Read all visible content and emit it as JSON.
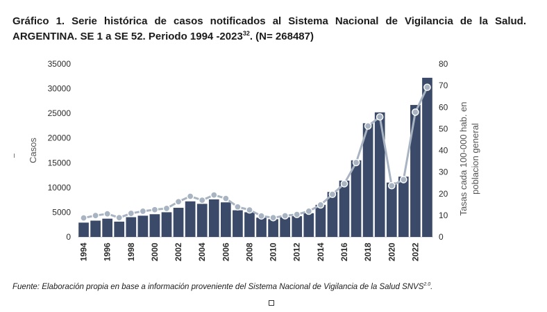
{
  "title": {
    "line": "Gráfico 1. Serie histórica de casos notificados al Sistema Nacional de Vigilancia de la Salud. ARGENTINA. SE 1 a SE 52. Periodo 1994 -2023",
    "superscript": "32",
    "suffix": ". (N= 268487)"
  },
  "source": {
    "text": "Fuente: Elaboración propia en base a información proveniente del Sistema Nacional de Vigilancia de la Salud SNVS",
    "superscript": "2.0",
    "suffix": "."
  },
  "colors": {
    "bars": "#3b4a68",
    "line": "#a9b4c2",
    "markers_fill": "#a9b4c2",
    "markers_stroke": "#ffffff"
  },
  "chart_data": {
    "type": "bar+line",
    "x": [
      1994,
      1995,
      1996,
      1997,
      1998,
      1999,
      2000,
      2001,
      2002,
      2003,
      2004,
      2005,
      2006,
      2007,
      2008,
      2009,
      2010,
      2011,
      2012,
      2013,
      2014,
      2015,
      2016,
      2017,
      2018,
      2019,
      2020,
      2021,
      2022,
      2023
    ],
    "series": [
      {
        "name": "Casos",
        "kind": "bar",
        "axis": "left",
        "values": [
          2900,
          3300,
          3700,
          3100,
          4000,
          4300,
          4600,
          5000,
          5900,
          7200,
          6700,
          7600,
          7000,
          5400,
          5000,
          3900,
          3600,
          4000,
          4200,
          4800,
          6500,
          9100,
          11400,
          15500,
          23000,
          25200,
          11000,
          12200,
          26700,
          32200
        ]
      },
      {
        "name": "Tasas cada 100-000 hab. en poblacion general",
        "kind": "line",
        "axis": "right",
        "values": [
          8.8,
          9.9,
          10.7,
          8.9,
          10.9,
          11.9,
          12.6,
          13.2,
          16.3,
          18.8,
          17.0,
          19.4,
          17.8,
          13.9,
          12.5,
          9.7,
          8.9,
          9.8,
          10.4,
          11.9,
          14.8,
          19.7,
          24.6,
          34.4,
          51.3,
          55.5,
          23.7,
          26.5,
          57.7,
          69.2
        ]
      }
    ],
    "xticks": [
      "1994",
      "1996",
      "1998",
      "2000",
      "2002",
      "2004",
      "2006",
      "2008",
      "2010",
      "2012",
      "2014",
      "2016",
      "2018",
      "2020",
      "2022"
    ],
    "yleft": {
      "label": "Casos",
      "ticks": [
        "0",
        "5000",
        "10000",
        "15000",
        "20000",
        "25000",
        "30000",
        "35000"
      ],
      "range": [
        0,
        35000
      ]
    },
    "yright": {
      "label_line1": "Tasas cada 100-000 hab. en",
      "label_line2": "poblacion general",
      "ticks": [
        "0",
        "10",
        "20",
        "30",
        "40",
        "50",
        "60",
        "70",
        "80"
      ],
      "range": [
        0,
        80
      ]
    }
  }
}
